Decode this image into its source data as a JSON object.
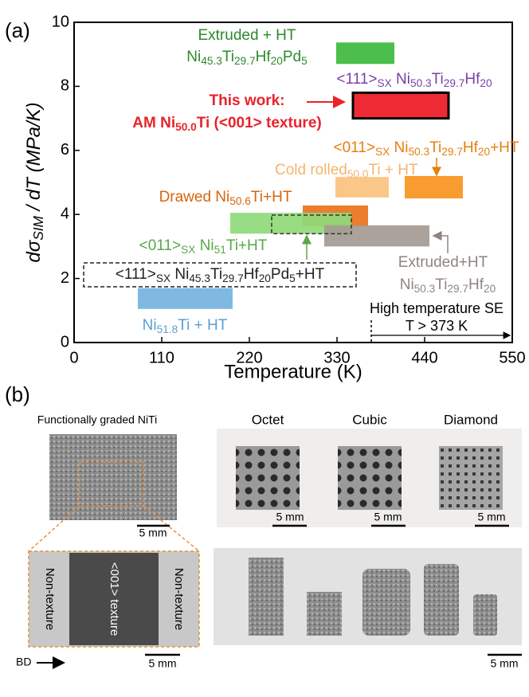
{
  "chart_data": {
    "type": "range-bar",
    "panel_label": "(a)",
    "xlabel": "Temperature (K)",
    "ylabel_parts": [
      "dσ",
      "SIM",
      " / dT (MPa/K)"
    ],
    "xlim": [
      0,
      550
    ],
    "xticks": [
      0,
      110,
      220,
      330,
      440,
      550
    ],
    "ylim": [
      0,
      10
    ],
    "yticks": [
      0,
      2,
      4,
      6,
      8,
      10
    ],
    "series": [
      {
        "label_lines": [
          [
            "Extruded + HT"
          ],
          [
            "Ni",
            "45.3",
            "Ti",
            "29.7",
            "Hf",
            "20",
            "Pd",
            "5"
          ]
        ],
        "color": "#3cb83c",
        "x": [
          329,
          402
        ],
        "values": [
          8.7,
          9.37
        ]
      },
      {
        "label_lines": [
          [
            "<111>",
            "SX",
            " Ni",
            "50.3",
            "Ti",
            "29.7",
            "Hf",
            "20"
          ]
        ],
        "color": "#b28fd0",
        "x": [
          449,
          467
        ],
        "values": [
          7.2,
          7.85
        ]
      },
      {
        "label_lines": [
          [
            "This work:"
          ],
          [
            "AM Ni",
            "50.0",
            "Ti (<001> texture)"
          ]
        ],
        "color": "#ee2b34",
        "x": [
          350,
          470
        ],
        "values": [
          7.0,
          7.8
        ]
      },
      {
        "label_lines": [
          [
            "<011>",
            "SX",
            " Ni",
            "50.3",
            "Ti",
            "29.7",
            "Hf",
            "20",
            "+HT"
          ]
        ],
        "color": "#f7941d",
        "x": [
          415,
          488
        ],
        "values": [
          4.5,
          5.2
        ]
      },
      {
        "label_lines": [
          [
            "Cold rolled",
            "50.0",
            "Ti + HT"
          ]
        ],
        "color": "#fbc27e",
        "x": [
          328,
          395
        ],
        "values": [
          4.53,
          5.17
        ]
      },
      {
        "label_lines": [
          [
            "Drawed Ni",
            "50.6",
            "Ti+HT"
          ]
        ],
        "color": "#e8731a",
        "x": [
          287,
          369
        ],
        "values": [
          3.63,
          4.28
        ]
      },
      {
        "label_lines": [
          [
            "<011>",
            "SX",
            " Ni",
            "51",
            "Ti+HT"
          ]
        ],
        "color": "#8fd97a",
        "x": [
          196,
          348
        ],
        "values": [
          3.4,
          4.05
        ]
      },
      {
        "label_lines": [
          [
            "Extruded+HT"
          ],
          [
            "Ni",
            "50.3",
            "Ti",
            "29.7",
            "Hf",
            "20"
          ]
        ],
        "color": "#a49a94",
        "x": [
          314,
          446
        ],
        "values": [
          3.0,
          3.66
        ]
      },
      {
        "label_lines": [
          [
            "<111>",
            "SX",
            " Ni",
            "45.3",
            "Ti",
            "29.7",
            "Hf",
            "20",
            "Pd",
            "5",
            "+HT"
          ]
        ],
        "color": "#333333",
        "x": [
          248,
          348
        ],
        "values": [
          3.4,
          3.98
        ]
      },
      {
        "label_lines": [
          [
            "Ni",
            "51.8",
            "Ti + HT"
          ]
        ],
        "color": "#74b3e0",
        "x": [
          80,
          199
        ],
        "values": [
          1.05,
          1.7
        ]
      }
    ],
    "annotation": {
      "lines": [
        "High temperature SE",
        "T > 373 K"
      ],
      "x": 373
    }
  },
  "photos": {
    "panel_label": "(b)",
    "graded_title": "Functionally graded NiTi",
    "lattices": [
      "Octet",
      "Cubic",
      "Diamond"
    ],
    "scale_bar": "5 mm",
    "left_region": "Non-texture",
    "right_region": "Non-texture",
    "center_region": "<001> texture",
    "build_direction": "BD"
  }
}
